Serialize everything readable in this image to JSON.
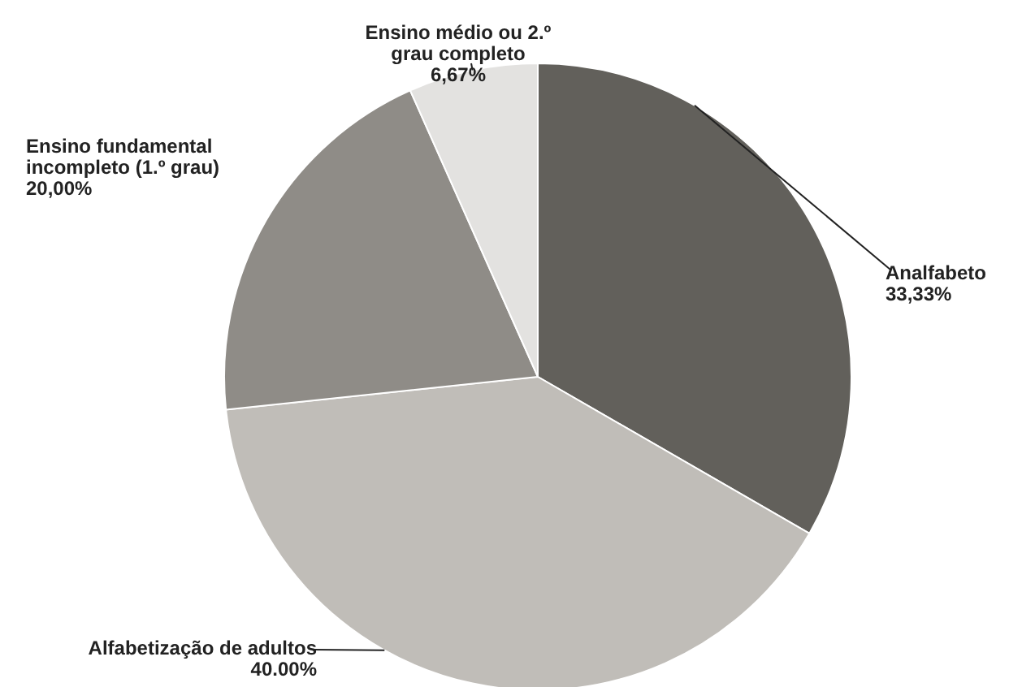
{
  "chart_data": {
    "type": "pie",
    "categories": [
      "Analfabeto",
      "Alfabetização de adultos",
      "Ensino fundamental incompleto (1.º grau)",
      "Ensino médio ou 2.º grau completo"
    ],
    "values": [
      33.33,
      40.0,
      20.0,
      6.67
    ],
    "value_labels": [
      "33,33%",
      "40.00%",
      "20,00%",
      "6,67%"
    ],
    "colors": [
      "#62605b",
      "#c0bdb8",
      "#8f8c87",
      "#e3e2e0"
    ]
  }
}
